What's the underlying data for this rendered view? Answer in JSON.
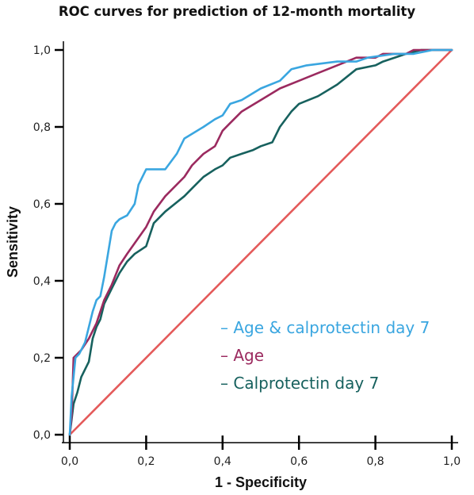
{
  "chart_data": {
    "type": "line",
    "title": "ROC curves for prediction of 12-month mortality",
    "xlabel": "1 - Specificity",
    "ylabel": "Sensitivity",
    "xlim": [
      0,
      1
    ],
    "ylim": [
      0,
      1
    ],
    "x_ticks": [
      "0,0",
      "0,2",
      "0,4",
      "0,6",
      "0,8",
      "1,0"
    ],
    "y_ticks": [
      "0,0",
      "0,2",
      "0,4",
      "0,6",
      "0,8",
      "1,0"
    ],
    "grid": false,
    "legend_position": "bottom-right",
    "series": [
      {
        "name": "Age & calprotectin day 7",
        "color": "#3aa6e0",
        "points": [
          [
            0,
            0
          ],
          [
            0.005,
            0.1
          ],
          [
            0.01,
            0.15
          ],
          [
            0.015,
            0.2
          ],
          [
            0.025,
            0.21
          ],
          [
            0.04,
            0.24
          ],
          [
            0.05,
            0.28
          ],
          [
            0.06,
            0.32
          ],
          [
            0.07,
            0.35
          ],
          [
            0.08,
            0.36
          ],
          [
            0.09,
            0.41
          ],
          [
            0.1,
            0.47
          ],
          [
            0.11,
            0.53
          ],
          [
            0.12,
            0.55
          ],
          [
            0.13,
            0.56
          ],
          [
            0.15,
            0.57
          ],
          [
            0.17,
            0.6
          ],
          [
            0.18,
            0.65
          ],
          [
            0.2,
            0.69
          ],
          [
            0.25,
            0.69
          ],
          [
            0.28,
            0.73
          ],
          [
            0.3,
            0.77
          ],
          [
            0.35,
            0.8
          ],
          [
            0.38,
            0.82
          ],
          [
            0.4,
            0.83
          ],
          [
            0.42,
            0.86
          ],
          [
            0.45,
            0.87
          ],
          [
            0.5,
            0.9
          ],
          [
            0.55,
            0.92
          ],
          [
            0.58,
            0.95
          ],
          [
            0.62,
            0.96
          ],
          [
            0.7,
            0.97
          ],
          [
            0.75,
            0.97
          ],
          [
            0.78,
            0.98
          ],
          [
            0.85,
            0.99
          ],
          [
            0.9,
            0.99
          ],
          [
            0.95,
            1.0
          ],
          [
            1.0,
            1.0
          ]
        ]
      },
      {
        "name": "Age",
        "color": "#9b2a5f",
        "points": [
          [
            0,
            0
          ],
          [
            0.005,
            0.05
          ],
          [
            0.01,
            0.2
          ],
          [
            0.03,
            0.22
          ],
          [
            0.05,
            0.25
          ],
          [
            0.07,
            0.29
          ],
          [
            0.09,
            0.35
          ],
          [
            0.11,
            0.39
          ],
          [
            0.13,
            0.44
          ],
          [
            0.15,
            0.47
          ],
          [
            0.2,
            0.54
          ],
          [
            0.22,
            0.58
          ],
          [
            0.25,
            0.62
          ],
          [
            0.3,
            0.67
          ],
          [
            0.32,
            0.7
          ],
          [
            0.35,
            0.73
          ],
          [
            0.38,
            0.75
          ],
          [
            0.4,
            0.79
          ],
          [
            0.42,
            0.81
          ],
          [
            0.45,
            0.84
          ],
          [
            0.5,
            0.87
          ],
          [
            0.55,
            0.9
          ],
          [
            0.6,
            0.92
          ],
          [
            0.65,
            0.94
          ],
          [
            0.7,
            0.96
          ],
          [
            0.75,
            0.98
          ],
          [
            0.8,
            0.98
          ],
          [
            0.82,
            0.99
          ],
          [
            0.88,
            0.99
          ],
          [
            0.9,
            1.0
          ],
          [
            1.0,
            1.0
          ]
        ]
      },
      {
        "name": "Calprotectin  day 7",
        "color": "#17615e",
        "points": [
          [
            0,
            0
          ],
          [
            0.005,
            0.04
          ],
          [
            0.01,
            0.08
          ],
          [
            0.02,
            0.11
          ],
          [
            0.03,
            0.15
          ],
          [
            0.05,
            0.19
          ],
          [
            0.06,
            0.25
          ],
          [
            0.07,
            0.28
          ],
          [
            0.08,
            0.3
          ],
          [
            0.09,
            0.34
          ],
          [
            0.1,
            0.36
          ],
          [
            0.11,
            0.38
          ],
          [
            0.13,
            0.42
          ],
          [
            0.15,
            0.45
          ],
          [
            0.17,
            0.47
          ],
          [
            0.2,
            0.49
          ],
          [
            0.22,
            0.55
          ],
          [
            0.25,
            0.58
          ],
          [
            0.3,
            0.62
          ],
          [
            0.32,
            0.64
          ],
          [
            0.35,
            0.67
          ],
          [
            0.38,
            0.69
          ],
          [
            0.4,
            0.7
          ],
          [
            0.42,
            0.72
          ],
          [
            0.45,
            0.73
          ],
          [
            0.48,
            0.74
          ],
          [
            0.5,
            0.75
          ],
          [
            0.53,
            0.76
          ],
          [
            0.55,
            0.8
          ],
          [
            0.58,
            0.84
          ],
          [
            0.6,
            0.86
          ],
          [
            0.65,
            0.88
          ],
          [
            0.7,
            0.91
          ],
          [
            0.75,
            0.95
          ],
          [
            0.8,
            0.96
          ],
          [
            0.82,
            0.97
          ],
          [
            0.88,
            0.99
          ],
          [
            0.92,
            1.0
          ],
          [
            1.0,
            1.0
          ]
        ]
      },
      {
        "name": "",
        "color": "#e45a5a",
        "points": [
          [
            0,
            0
          ],
          [
            1,
            1
          ]
        ]
      }
    ]
  }
}
